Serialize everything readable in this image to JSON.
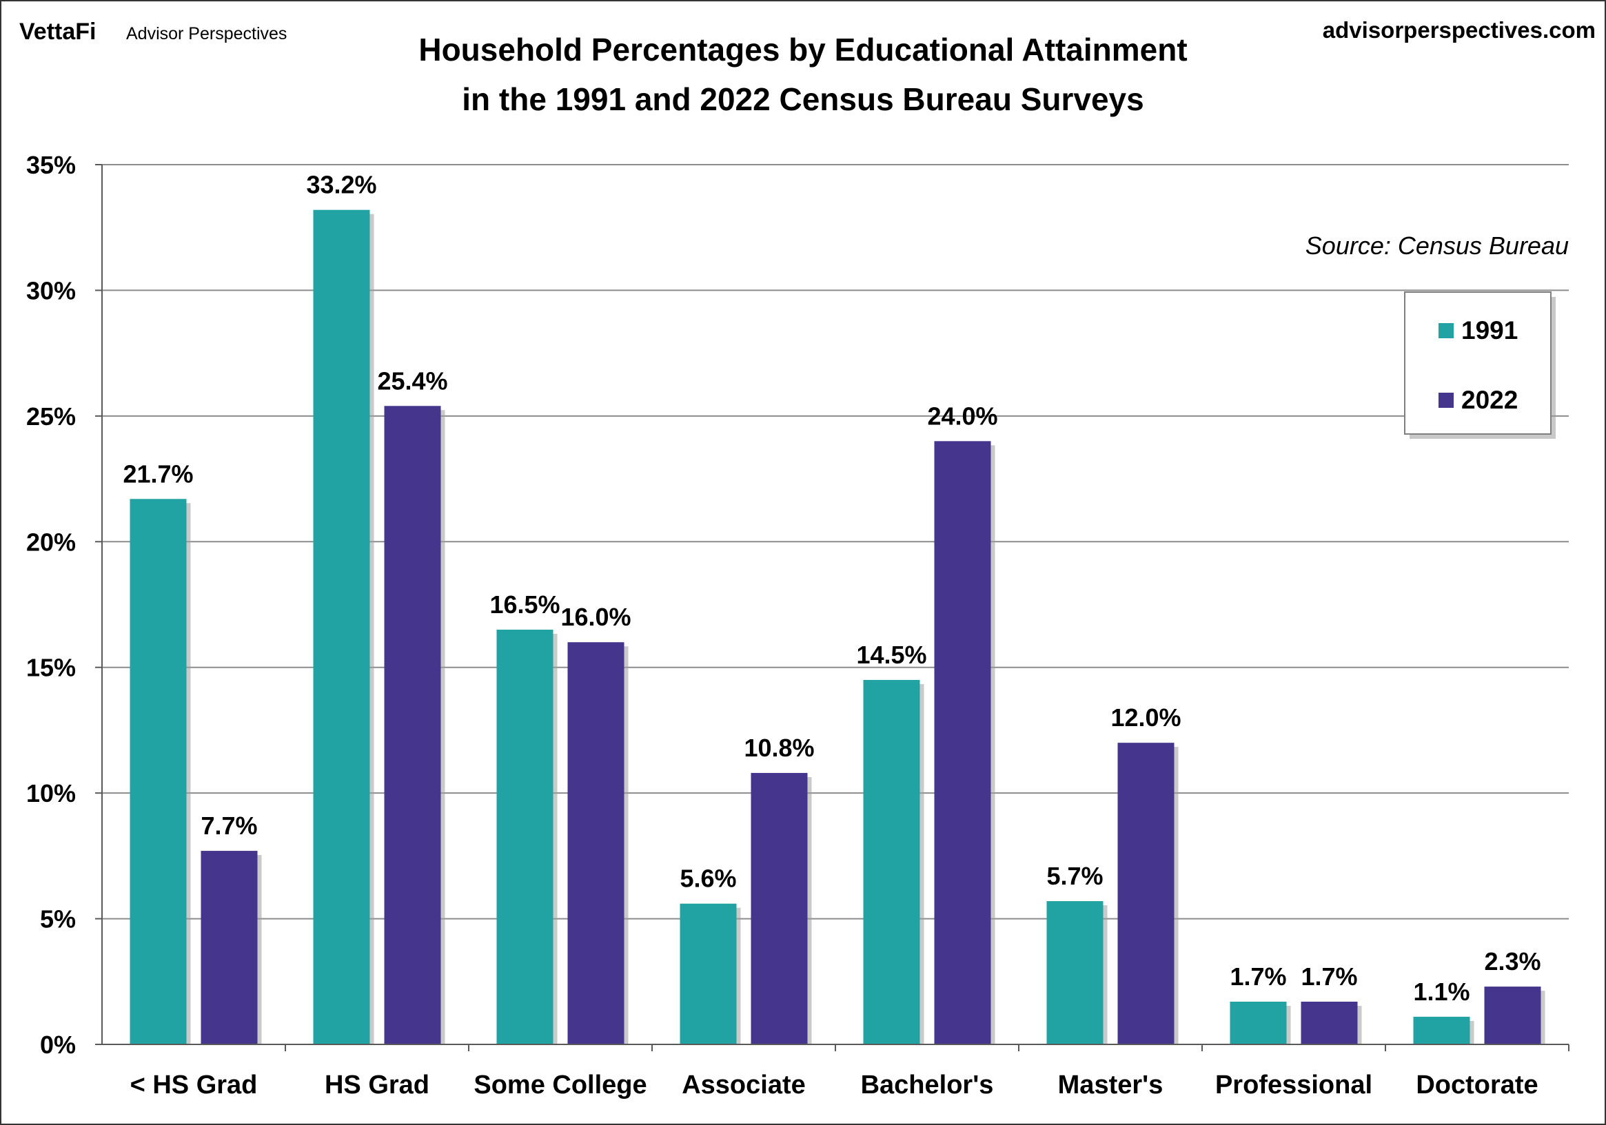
{
  "branding": {
    "logo_text": "VettaFi",
    "logo_subtext": "Advisor Perspectives",
    "site": "advisorperspectives.com"
  },
  "source_note": "Source: Census Bureau",
  "chart_data": {
    "type": "bar",
    "title_lines": [
      "Household Percentages by Educational Attainment",
      "in the 1991 and 2022 Census Bureau Surveys"
    ],
    "categories": [
      "< HS Grad",
      "HS Grad",
      "Some College",
      "Associate",
      "Bachelor's",
      "Master's",
      "Professional",
      "Doctorate"
    ],
    "series": [
      {
        "name": "1991",
        "color": "#22a3a3",
        "values": [
          21.7,
          33.2,
          16.5,
          5.6,
          14.5,
          5.7,
          1.7,
          1.1
        ],
        "labels": [
          "21.7%",
          "33.2%",
          "16.5%",
          "5.6%",
          "14.5%",
          "5.7%",
          "1.7%",
          "1.1%"
        ]
      },
      {
        "name": "2022",
        "color": "#46358c",
        "values": [
          7.7,
          25.4,
          16.0,
          10.8,
          24.0,
          12.0,
          1.7,
          2.3
        ],
        "labels": [
          "7.7%",
          "25.4%",
          "16.0%",
          "10.8%",
          "24.0%",
          "12.0%",
          "1.7%",
          "2.3%"
        ]
      }
    ],
    "xlabel": "",
    "ylabel": "",
    "ylim": [
      0,
      35
    ],
    "yticks": [
      0,
      5,
      10,
      15,
      20,
      25,
      30,
      35
    ],
    "ytick_labels": [
      "0%",
      "5%",
      "10%",
      "15%",
      "20%",
      "25%",
      "30%",
      "35%"
    ],
    "grid": true,
    "legend_position": "top-right"
  }
}
